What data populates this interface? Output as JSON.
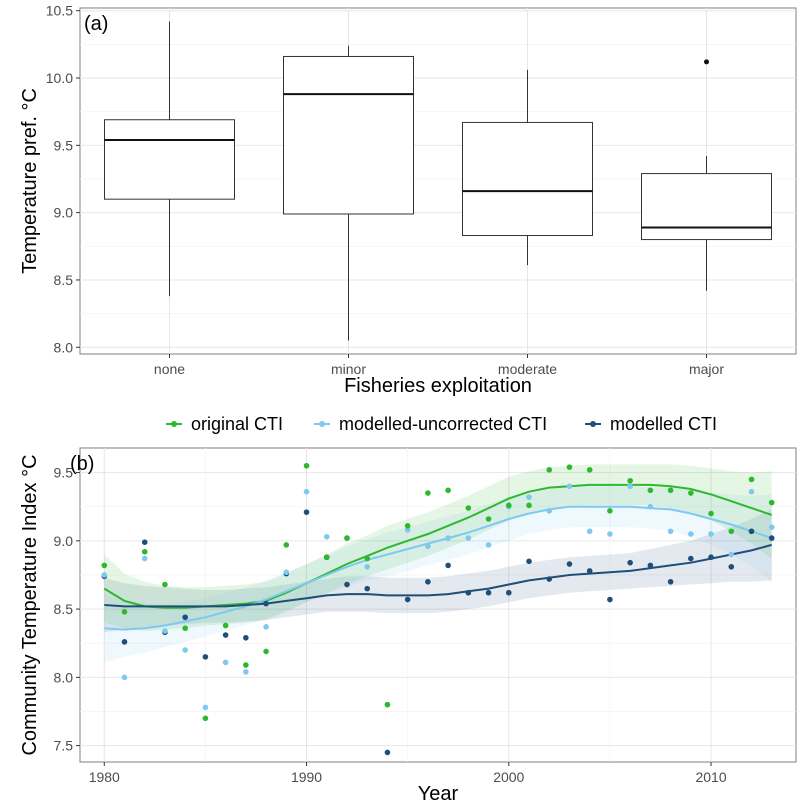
{
  "chart_data": [
    {
      "type": "box",
      "panel_label": "(a)",
      "xlabel": "Fisheries exploitation",
      "ylabel": "Temperature pref. °C",
      "ylim": [
        7.95,
        10.52
      ],
      "yticks": [
        "8.0",
        "8.5",
        "9.0",
        "9.5",
        "10.0",
        "10.5"
      ],
      "categories": [
        "none",
        "minor",
        "moderate",
        "major"
      ],
      "boxes": [
        {
          "min": 8.38,
          "q1": 9.1,
          "median": 9.54,
          "q3": 9.69,
          "max": 10.42,
          "outliers": []
        },
        {
          "min": 8.05,
          "q1": 8.99,
          "median": 9.88,
          "q3": 10.16,
          "max": 10.24,
          "outliers": []
        },
        {
          "min": 8.61,
          "q1": 8.83,
          "median": 9.16,
          "q3": 9.67,
          "max": 10.06,
          "outliers": []
        },
        {
          "min": 8.42,
          "q1": 8.8,
          "median": 8.89,
          "q3": 9.29,
          "max": 9.42,
          "outliers": [
            10.12
          ]
        }
      ],
      "grid": true
    },
    {
      "type": "scatter+smooth",
      "panel_label": "(b)",
      "xlabel": "Year",
      "ylabel": "Community Temperature Index °C",
      "xlim": [
        1978.8,
        2014.2
      ],
      "ylim": [
        7.38,
        9.68
      ],
      "xticks": [
        "1980",
        "1990",
        "2000",
        "2010"
      ],
      "yticks": [
        "7.5",
        "8.0",
        "8.5",
        "9.0",
        "9.5"
      ],
      "legend_position": "top",
      "grid": true,
      "series": [
        {
          "name": "original CTI",
          "color": "#2db82d",
          "x": [
            1980,
            1981,
            1982,
            1983,
            1984,
            1985,
            1986,
            1987,
            1988,
            1989,
            1990,
            1991,
            1992,
            1993,
            1994,
            1995,
            1996,
            1997,
            1998,
            1999,
            2000,
            2001,
            2002,
            2003,
            2004,
            2005,
            2006,
            2007,
            2008,
            2009,
            2010,
            2011,
            2012,
            2013
          ],
          "y": [
            8.82,
            8.48,
            8.92,
            8.68,
            8.36,
            7.7,
            8.38,
            8.09,
            8.19,
            8.97,
            9.55,
            8.88,
            9.02,
            8.87,
            7.8,
            9.11,
            9.35,
            9.37,
            9.24,
            9.16,
            9.26,
            9.26,
            9.52,
            9.54,
            9.52,
            9.22,
            9.44,
            9.37,
            9.37,
            9.35,
            9.2,
            9.07,
            9.45,
            9.28
          ],
          "smooth_y": [
            8.65,
            8.56,
            8.52,
            8.51,
            8.51,
            8.52,
            8.53,
            8.54,
            8.56,
            8.62,
            8.69,
            8.76,
            8.83,
            8.89,
            8.95,
            9.0,
            9.05,
            9.11,
            9.17,
            9.24,
            9.31,
            9.36,
            9.39,
            9.4,
            9.41,
            9.41,
            9.41,
            9.41,
            9.4,
            9.38,
            9.34,
            9.29,
            9.24,
            9.19
          ],
          "band_halfwidth": [
            0.25,
            0.2,
            0.18,
            0.16,
            0.15,
            0.14,
            0.14,
            0.14,
            0.14,
            0.14,
            0.14,
            0.14,
            0.15,
            0.15,
            0.16,
            0.16,
            0.16,
            0.16,
            0.16,
            0.16,
            0.16,
            0.15,
            0.15,
            0.15,
            0.15,
            0.15,
            0.15,
            0.15,
            0.16,
            0.17,
            0.19,
            0.22,
            0.26,
            0.32
          ]
        },
        {
          "name": "modelled-uncorrected CTI",
          "color": "#7ec9f0",
          "x": [
            1980,
            1981,
            1982,
            1983,
            1984,
            1985,
            1986,
            1987,
            1988,
            1989,
            1990,
            1991,
            1992,
            1993,
            1994,
            1995,
            1996,
            1997,
            1998,
            1999,
            2000,
            2001,
            2002,
            2003,
            2004,
            2005,
            2006,
            2007,
            2008,
            2009,
            2010,
            2011,
            2012,
            2013
          ],
          "y": [
            8.75,
            8.0,
            8.87,
            8.34,
            8.2,
            7.78,
            8.11,
            8.04,
            8.37,
            8.77,
            9.36,
            9.03,
            9.02,
            8.81,
            7.8,
            9.08,
            8.96,
            9.02,
            9.02,
            8.97,
            9.25,
            9.32,
            9.22,
            9.4,
            9.07,
            9.05,
            9.4,
            9.25,
            9.07,
            9.05,
            9.05,
            8.9,
            9.36,
            9.1
          ],
          "smooth_y": [
            8.36,
            8.35,
            8.36,
            8.38,
            8.41,
            8.44,
            8.48,
            8.52,
            8.57,
            8.63,
            8.69,
            8.75,
            8.81,
            8.86,
            8.9,
            8.94,
            8.98,
            9.02,
            9.06,
            9.11,
            9.16,
            9.2,
            9.23,
            9.25,
            9.25,
            9.25,
            9.25,
            9.24,
            9.23,
            9.2,
            9.16,
            9.12,
            9.07,
            9.02
          ],
          "band_halfwidth": [
            0.25,
            0.2,
            0.18,
            0.16,
            0.15,
            0.14,
            0.14,
            0.14,
            0.14,
            0.14,
            0.14,
            0.14,
            0.15,
            0.15,
            0.16,
            0.16,
            0.16,
            0.16,
            0.16,
            0.16,
            0.16,
            0.15,
            0.15,
            0.15,
            0.15,
            0.15,
            0.15,
            0.15,
            0.16,
            0.17,
            0.19,
            0.22,
            0.26,
            0.32
          ]
        },
        {
          "name": "modelled CTI",
          "color": "#1f4e79",
          "x": [
            1980,
            1981,
            1982,
            1983,
            1984,
            1985,
            1986,
            1987,
            1988,
            1989,
            1990,
            1991,
            1992,
            1993,
            1994,
            1995,
            1996,
            1997,
            1998,
            1999,
            2000,
            2001,
            2002,
            2003,
            2004,
            2005,
            2006,
            2007,
            2008,
            2009,
            2010,
            2011,
            2012,
            2013
          ],
          "y": [
            8.74,
            8.26,
            8.99,
            8.33,
            8.44,
            8.15,
            8.31,
            8.29,
            8.54,
            8.76,
            9.21,
            8.88,
            8.68,
            8.65,
            7.45,
            8.57,
            8.7,
            8.82,
            8.62,
            8.62,
            8.62,
            8.85,
            8.72,
            8.83,
            8.78,
            8.57,
            8.84,
            8.82,
            8.7,
            8.87,
            8.88,
            8.81,
            9.07,
            9.02
          ],
          "smooth_y": [
            8.53,
            8.52,
            8.52,
            8.52,
            8.52,
            8.52,
            8.52,
            8.53,
            8.54,
            8.56,
            8.58,
            8.6,
            8.61,
            8.61,
            8.6,
            8.6,
            8.6,
            8.61,
            8.63,
            8.65,
            8.68,
            8.71,
            8.73,
            8.75,
            8.76,
            8.77,
            8.78,
            8.8,
            8.82,
            8.84,
            8.87,
            8.9,
            8.93,
            8.97
          ],
          "band_halfwidth": [
            0.2,
            0.17,
            0.15,
            0.14,
            0.13,
            0.12,
            0.12,
            0.12,
            0.12,
            0.12,
            0.12,
            0.12,
            0.13,
            0.13,
            0.13,
            0.13,
            0.13,
            0.13,
            0.13,
            0.13,
            0.13,
            0.13,
            0.13,
            0.13,
            0.13,
            0.13,
            0.13,
            0.14,
            0.15,
            0.16,
            0.18,
            0.2,
            0.23,
            0.26
          ]
        }
      ]
    }
  ]
}
